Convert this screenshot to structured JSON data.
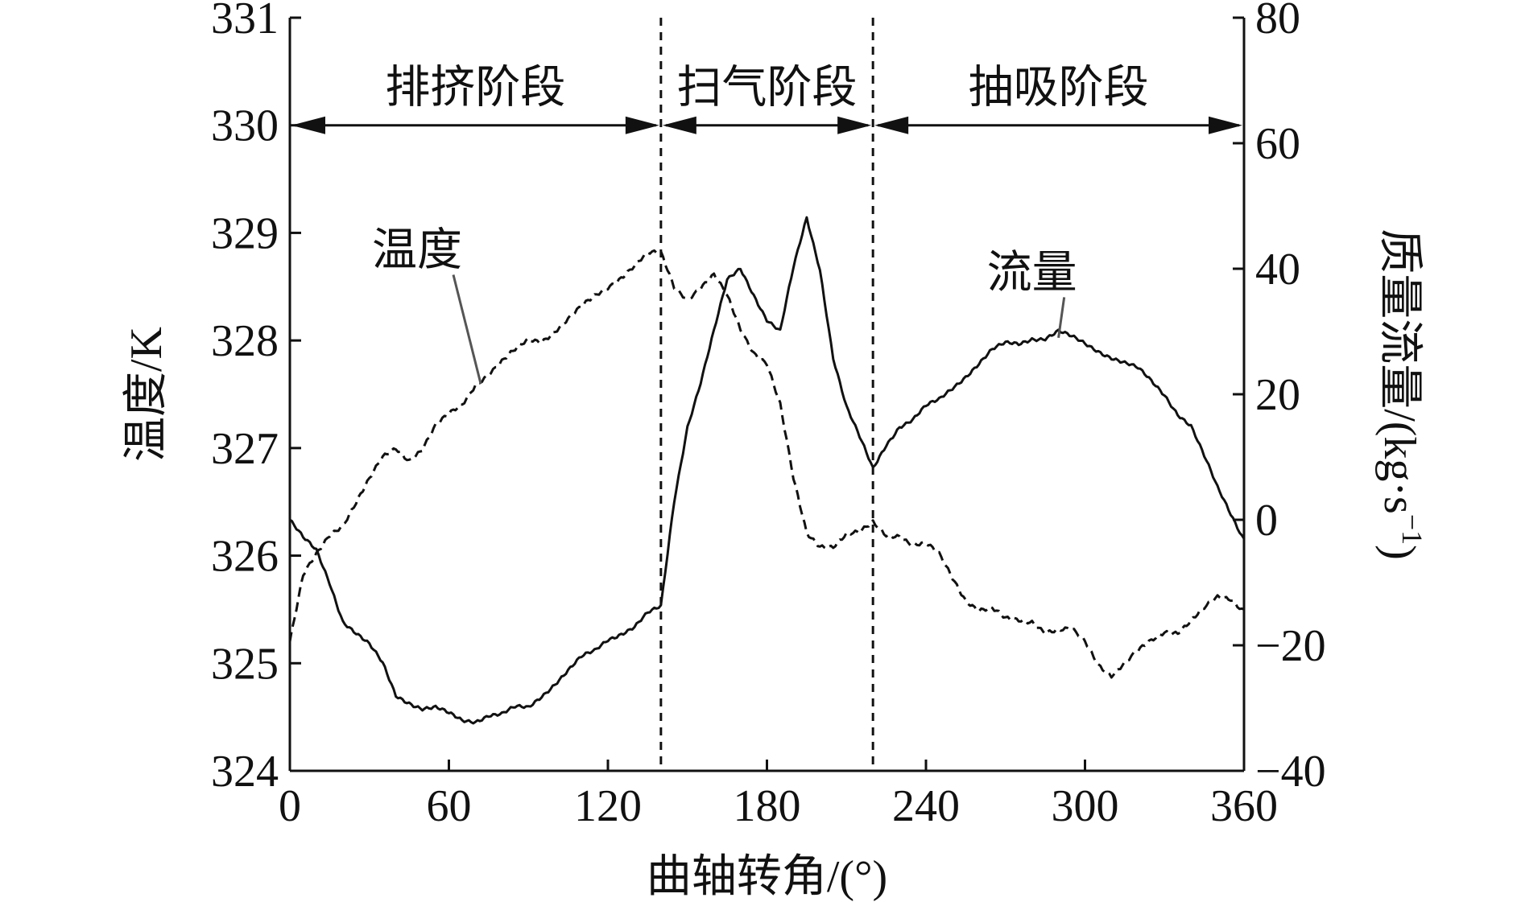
{
  "chart_data": {
    "type": "line",
    "title": "",
    "xlabel": "曲轴转角/(°)",
    "ylabel_left": "温度/K",
    "ylabel_right_parts": [
      "质量流量/(kg·s",
      "−1",
      ")"
    ],
    "xlim": [
      0,
      360
    ],
    "ylim_left": [
      324,
      331
    ],
    "ylim_right": [
      -40,
      80
    ],
    "xticks": [
      0,
      60,
      120,
      180,
      240,
      300,
      360
    ],
    "xtick_labels": [
      "0",
      "60",
      "120",
      "180",
      "240",
      "300",
      "360"
    ],
    "yticks_left": [
      324,
      325,
      326,
      327,
      328,
      329,
      330,
      331
    ],
    "yticks_left_labels": [
      "324",
      "325",
      "326",
      "327",
      "328",
      "329",
      "330",
      "331"
    ],
    "yticks_right": [
      -40,
      -20,
      0,
      20,
      40,
      60,
      80
    ],
    "yticks_right_labels": [
      "−40",
      "−20",
      "0",
      "20",
      "40",
      "60",
      "80"
    ],
    "grid": false,
    "phase_boundaries": [
      140,
      220
    ],
    "phase_arrow_level_left": 330,
    "phases": [
      {
        "label": "排挤阶段",
        "start": 0,
        "end": 140
      },
      {
        "label": "扫气阶段",
        "start": 140,
        "end": 220
      },
      {
        "label": "抽吸阶段",
        "start": 220,
        "end": 360
      }
    ],
    "series": [
      {
        "name": "温度",
        "axis": "left",
        "style": "dashed",
        "label_anchor": [
          72,
          327.6
        ],
        "x": [
          0,
          5,
          10,
          15,
          20,
          25,
          30,
          35,
          40,
          45,
          50,
          55,
          60,
          65,
          70,
          75,
          80,
          85,
          90,
          95,
          100,
          105,
          110,
          115,
          120,
          125,
          130,
          135,
          140,
          145,
          150,
          155,
          160,
          165,
          170,
          175,
          180,
          185,
          190,
          195,
          200,
          205,
          210,
          215,
          220,
          225,
          230,
          235,
          240,
          245,
          250,
          255,
          260,
          265,
          270,
          275,
          280,
          285,
          290,
          295,
          300,
          305,
          310,
          315,
          320,
          325,
          330,
          335,
          340,
          345,
          350,
          355,
          360
        ],
        "y": [
          325.2,
          325.8,
          326.0,
          326.2,
          326.3,
          326.5,
          326.7,
          326.9,
          327.0,
          326.9,
          327.0,
          327.2,
          327.3,
          327.4,
          327.6,
          327.7,
          327.8,
          327.9,
          328.0,
          328.0,
          328.1,
          328.2,
          328.3,
          328.4,
          328.5,
          328.6,
          328.7,
          328.8,
          328.8,
          328.5,
          328.4,
          328.5,
          328.6,
          328.4,
          328.1,
          327.9,
          327.8,
          327.4,
          326.7,
          326.2,
          326.1,
          326.1,
          326.2,
          326.2,
          326.3,
          326.2,
          326.2,
          326.1,
          326.1,
          326.0,
          325.8,
          325.6,
          325.5,
          325.5,
          325.4,
          325.4,
          325.4,
          325.3,
          325.3,
          325.3,
          325.2,
          325.0,
          324.9,
          325.0,
          325.1,
          325.2,
          325.3,
          325.3,
          325.4,
          325.5,
          325.6,
          325.6,
          325.5
        ]
      },
      {
        "name": "流量",
        "axis": "right",
        "style": "solid",
        "label_anchor": [
          290,
          29
        ],
        "x": [
          0,
          5,
          10,
          15,
          20,
          25,
          30,
          35,
          40,
          45,
          50,
          55,
          60,
          65,
          70,
          75,
          80,
          85,
          90,
          95,
          100,
          105,
          110,
          115,
          120,
          125,
          130,
          135,
          140,
          145,
          150,
          155,
          160,
          165,
          170,
          175,
          180,
          185,
          190,
          195,
          200,
          205,
          210,
          215,
          220,
          225,
          230,
          235,
          240,
          245,
          250,
          255,
          260,
          265,
          270,
          275,
          280,
          285,
          290,
          295,
          300,
          305,
          310,
          315,
          320,
          325,
          330,
          335,
          340,
          345,
          350,
          355,
          360
        ],
        "y": [
          0,
          -3,
          -5,
          -10,
          -16,
          -18,
          -20,
          -23,
          -28,
          -29,
          -30,
          -30,
          -31,
          -32,
          -32,
          -31,
          -31,
          -30,
          -30,
          -28,
          -26,
          -24,
          -22,
          -21,
          -19,
          -18,
          -17,
          -15,
          -14,
          3,
          15,
          22,
          30,
          38,
          40,
          36,
          32,
          30,
          40,
          48,
          40,
          26,
          18,
          13,
          8,
          12,
          15,
          16,
          18,
          19,
          21,
          23,
          25,
          27,
          28,
          28,
          29,
          29,
          30,
          29,
          28,
          27,
          26,
          25,
          24,
          22,
          20,
          17,
          15,
          10,
          5,
          1,
          -3
        ]
      }
    ]
  }
}
